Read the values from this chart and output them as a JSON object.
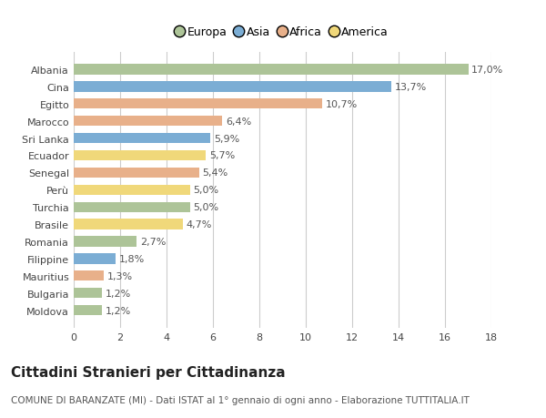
{
  "categories": [
    "Albania",
    "Cina",
    "Egitto",
    "Marocco",
    "Sri Lanka",
    "Ecuador",
    "Senegal",
    "Perù",
    "Turchia",
    "Brasile",
    "Romania",
    "Filippine",
    "Mauritius",
    "Bulgaria",
    "Moldova"
  ],
  "values": [
    17.0,
    13.7,
    10.7,
    6.4,
    5.9,
    5.7,
    5.4,
    5.0,
    5.0,
    4.7,
    2.7,
    1.8,
    1.3,
    1.2,
    1.2
  ],
  "labels": [
    "17,0%",
    "13,7%",
    "10,7%",
    "6,4%",
    "5,9%",
    "5,7%",
    "5,4%",
    "5,0%",
    "5,0%",
    "4,7%",
    "2,7%",
    "1,8%",
    "1,3%",
    "1,2%",
    "1,2%"
  ],
  "bar_colors": [
    "#adc498",
    "#7badd4",
    "#e8b08a",
    "#e8b08a",
    "#7badd4",
    "#f0d87a",
    "#e8b08a",
    "#f0d87a",
    "#adc498",
    "#f0d87a",
    "#adc498",
    "#7badd4",
    "#e8b08a",
    "#adc498",
    "#adc498"
  ],
  "xlim": [
    0,
    18
  ],
  "xticks": [
    0,
    2,
    4,
    6,
    8,
    10,
    12,
    14,
    16,
    18
  ],
  "title": "Cittadini Stranieri per Cittadinanza",
  "subtitle": "COMUNE DI BARANZATE (MI) - Dati ISTAT al 1° gennaio di ogni anno - Elaborazione TUTTITALIA.IT",
  "legend_labels": [
    "Europa",
    "Asia",
    "Africa",
    "America"
  ],
  "legend_colors": [
    "#adc498",
    "#7badd4",
    "#e8b08a",
    "#f0d87a"
  ],
  "bg_color": "#ffffff",
  "grid_color": "#cccccc",
  "bar_height": 0.6,
  "label_fontsize": 8,
  "tick_fontsize": 8,
  "title_fontsize": 11,
  "subtitle_fontsize": 7.5
}
